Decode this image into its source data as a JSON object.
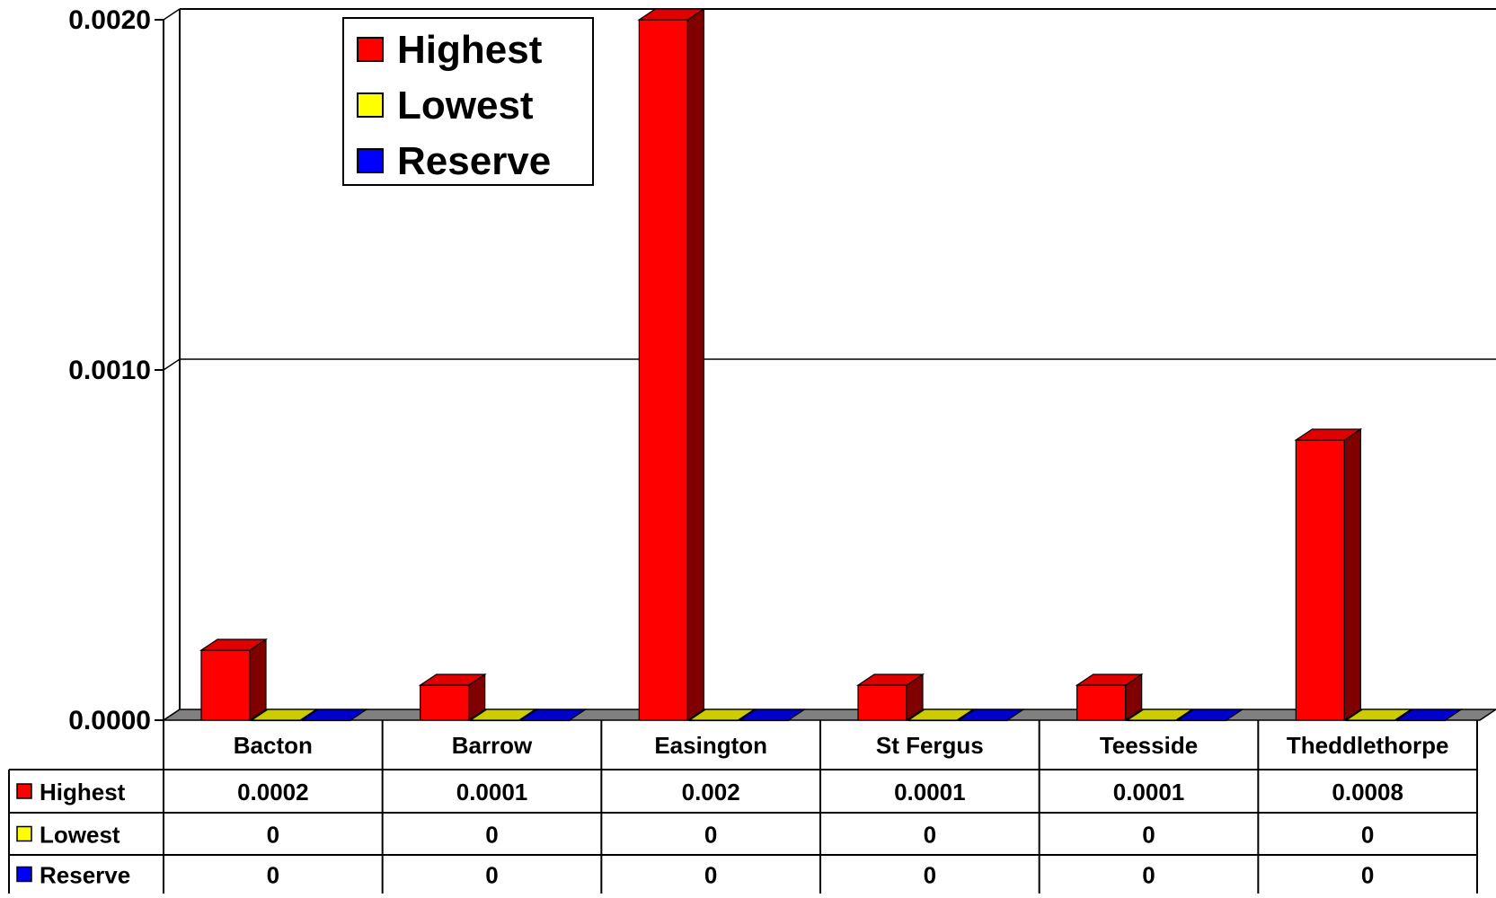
{
  "chart_data": {
    "type": "bar",
    "categories": [
      "Bacton",
      "Barrow",
      "Easington",
      "St Fergus",
      "Teesside",
      "Theddlethorpe"
    ],
    "series": [
      {
        "name": "Highest",
        "values": [
          0.0002,
          0.0001,
          0.002,
          0.0001,
          0.0001,
          0.0008
        ],
        "color": "#ff0000",
        "side_color": "#800000",
        "top_color": "#e00000"
      },
      {
        "name": "Lowest",
        "values": [
          0,
          0,
          0,
          0,
          0,
          0
        ],
        "color": "#ffff00",
        "side_color": "#999900",
        "top_color": "#cccc00"
      },
      {
        "name": "Reserve",
        "values": [
          0,
          0,
          0,
          0,
          0,
          0
        ],
        "color": "#0000ff",
        "side_color": "#000080",
        "top_color": "#0000cc"
      }
    ],
    "table_values": [
      [
        "0.0002",
        "0.0001",
        "0.002",
        "0.0001",
        "0.0001",
        "0.0008"
      ],
      [
        "0",
        "0",
        "0",
        "0",
        "0",
        "0"
      ],
      [
        "0",
        "0",
        "0",
        "0",
        "0",
        "0"
      ]
    ],
    "ylim": [
      0,
      0.002
    ],
    "yticks": [
      0,
      0.001,
      0.002
    ],
    "ytick_labels": [
      "0.0000",
      "0.0010",
      "0.0020"
    ],
    "title": "",
    "xlabel": "",
    "ylabel": "",
    "grid": true,
    "three_d": true,
    "legend_position": "top-left",
    "data_table": true,
    "floor_color": "#808080"
  }
}
